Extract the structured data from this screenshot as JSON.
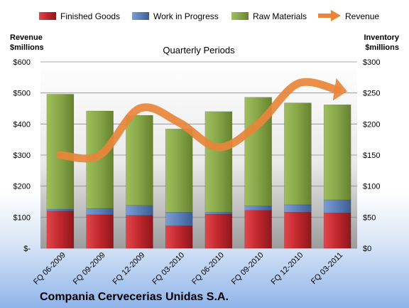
{
  "title": "Compania Cervecerias Unidas S.A.",
  "subtitle": "Quarterly Periods",
  "chart_data": {
    "type": "bar",
    "stacked": true,
    "categories": [
      "FQ 06-2009",
      "FQ 09-2009",
      "FQ 12-2009",
      "FQ 03-2010",
      "FQ 06-2010",
      "FQ 09-2010",
      "FQ 12-2010",
      "FQ 03-2011"
    ],
    "series": [
      {
        "name": "Finished Goods",
        "axis": "right",
        "color": "#c0272d",
        "values": [
          60,
          54,
          53,
          36,
          55,
          61,
          58,
          57
        ]
      },
      {
        "name": "Work in Progress",
        "axis": "right",
        "color": "#5b7fb8",
        "values": [
          3,
          10,
          16,
          22,
          3,
          7,
          12,
          21
        ]
      },
      {
        "name": "Raw Materials",
        "axis": "right",
        "color": "#8aa84a",
        "values": [
          185,
          157,
          145,
          134,
          162,
          175,
          164,
          153
        ]
      },
      {
        "name": "Revenue",
        "type": "line",
        "axis": "left",
        "color": "#e8863a",
        "values": [
          300,
          300,
          450,
          405,
          325,
          400,
          530,
          510
        ]
      }
    ],
    "left_axis": {
      "title_line1": "Revenue",
      "title_line2": "$millions",
      "range": [
        0,
        600
      ],
      "ticks": [
        0,
        100,
        200,
        300,
        400,
        500,
        600
      ],
      "tick_labels": [
        "$-",
        "$100",
        "$200",
        "$300",
        "$400",
        "$500",
        "$600"
      ]
    },
    "right_axis": {
      "title_line1": "Inventory",
      "title_line2": "$millions",
      "range": [
        0,
        300
      ],
      "ticks": [
        0,
        50,
        100,
        150,
        200,
        250,
        300
      ],
      "tick_labels": [
        "$0",
        "$50",
        "$100",
        "$150",
        "$200",
        "$250",
        "$300"
      ]
    },
    "grid": true,
    "legend_position": "top"
  }
}
